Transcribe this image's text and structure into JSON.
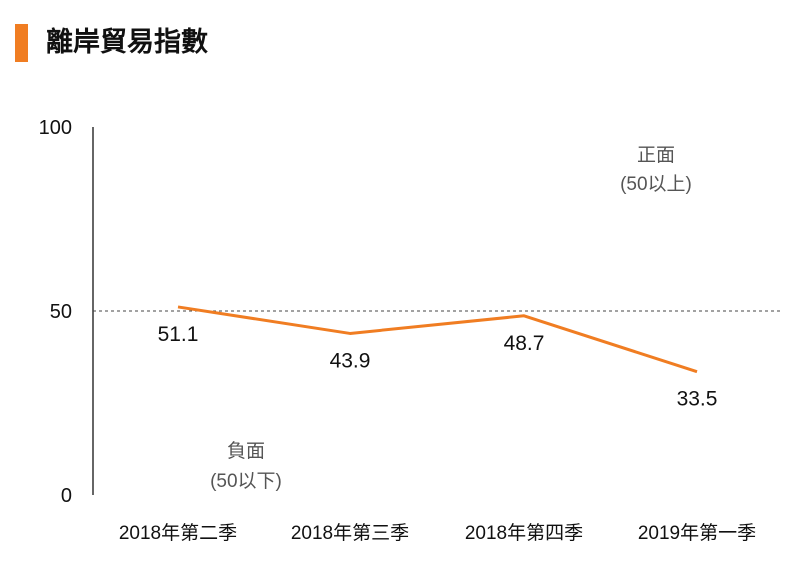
{
  "title": "離岸貿易指數",
  "accent_color": "#f07d22",
  "chart_data": {
    "type": "line",
    "title": "離岸貿易指數",
    "categories": [
      "2018年第二季",
      "2018年第三季",
      "2018年第四季",
      "2019年第一季"
    ],
    "series": [
      {
        "values": [
          51.1,
          43.9,
          48.7,
          33.5
        ],
        "color": "#f07d22"
      }
    ],
    "data_labels": [
      "51.1",
      "43.9",
      "48.7",
      "33.5"
    ],
    "ylim": [
      0,
      100
    ],
    "yticks": [
      "0",
      "50",
      "100"
    ],
    "reference_line": {
      "value": 50,
      "style": "dashed"
    },
    "annotations": {
      "positive": [
        "正面",
        "(50以上)"
      ],
      "negative": [
        "負面",
        "(50以下)"
      ]
    },
    "grid": false
  }
}
